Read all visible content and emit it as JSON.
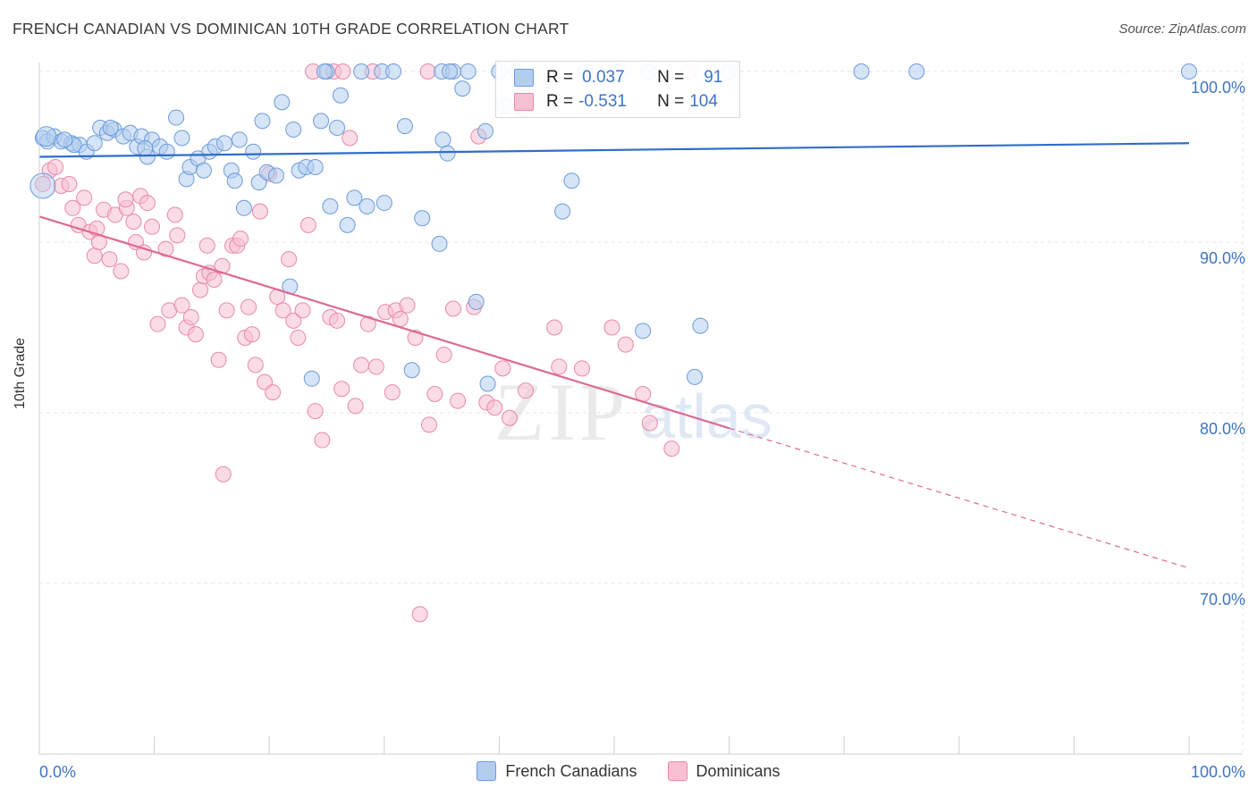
{
  "header": {
    "title": "FRENCH CANADIAN VS DOMINICAN 10TH GRADE CORRELATION CHART",
    "source": "Source: ZipAtlas.com"
  },
  "watermark": {
    "zip": "ZIP",
    "atlas": "atlas"
  },
  "legend": {
    "rows": [
      {
        "r_label": "R =",
        "r_value": "0.037",
        "n_label": "N =",
        "n_value": "91"
      },
      {
        "r_label": "R =",
        "r_value": "-0.531",
        "n_label": "N =",
        "n_value": "104"
      }
    ]
  },
  "bottom_legend": {
    "items": [
      "French Canadians",
      "Dominicans"
    ]
  },
  "chart_data": {
    "type": "scatter",
    "title": "FRENCH CANADIAN VS DOMINICAN 10TH GRADE CORRELATION CHART",
    "xlabel": "",
    "ylabel": "10th Grade",
    "xlim": [
      0,
      100
    ],
    "ylim": [
      60,
      100
    ],
    "x_tick_labels": [
      "0.0%",
      "100.0%"
    ],
    "y_ticks": [
      {
        "value": 100,
        "label": "100.0%"
      },
      {
        "value": 90,
        "label": "90.0%"
      },
      {
        "value": 80,
        "label": "80.0%"
      },
      {
        "value": 70,
        "label": "70.0%"
      }
    ],
    "grid": true,
    "legend_position": "top-center",
    "colors": {
      "blue_fill": "#b3cdef",
      "blue_stroke": "#6d9bdc",
      "blue_line": "#2f6ec9",
      "pink_fill": "#f7c0d2",
      "pink_stroke": "#e889a8",
      "pink_line": "#de6a93",
      "accent_text": "#3f74c4"
    },
    "series": [
      {
        "name": "French Canadians",
        "r": 0.037,
        "n": 91,
        "trend": {
          "x": [
            0,
            100
          ],
          "y": [
            95.0,
            95.8
          ]
        },
        "points": [
          [
            0.3,
            96.1
          ],
          [
            0.7,
            95.9
          ],
          [
            1.3,
            96.2
          ],
          [
            1.9,
            95.9
          ],
          [
            2.8,
            95.8
          ],
          [
            3.5,
            95.7
          ],
          [
            4.1,
            95.3
          ],
          [
            4.8,
            95.8
          ],
          [
            5.3,
            96.7
          ],
          [
            5.9,
            96.4
          ],
          [
            6.5,
            96.6
          ],
          [
            7.3,
            96.2
          ],
          [
            7.9,
            96.4
          ],
          [
            8.5,
            95.6
          ],
          [
            8.9,
            96.2
          ],
          [
            9.4,
            95.0
          ],
          [
            9.8,
            96.0
          ],
          [
            10.5,
            95.6
          ],
          [
            11.1,
            95.3
          ],
          [
            11.9,
            97.3
          ],
          [
            12.4,
            96.1
          ],
          [
            12.8,
            93.7
          ],
          [
            13.1,
            94.4
          ],
          [
            13.8,
            94.9
          ],
          [
            14.3,
            94.2
          ],
          [
            14.8,
            95.3
          ],
          [
            15.3,
            95.6
          ],
          [
            16.1,
            95.8
          ],
          [
            16.7,
            94.2
          ],
          [
            17.0,
            93.6
          ],
          [
            17.4,
            96.0
          ],
          [
            17.8,
            92.0
          ],
          [
            18.6,
            95.3
          ],
          [
            19.1,
            93.5
          ],
          [
            19.4,
            97.1
          ],
          [
            19.8,
            94.1
          ],
          [
            20.6,
            93.9
          ],
          [
            21.1,
            98.2
          ],
          [
            21.8,
            87.4
          ],
          [
            22.1,
            96.6
          ],
          [
            22.6,
            94.2
          ],
          [
            23.2,
            94.4
          ],
          [
            23.7,
            82.0
          ],
          [
            24.0,
            94.4
          ],
          [
            24.5,
            97.1
          ],
          [
            25.3,
            92.1
          ],
          [
            25.9,
            96.7
          ],
          [
            26.2,
            98.6
          ],
          [
            26.8,
            91.0
          ],
          [
            27.4,
            92.6
          ],
          [
            28.5,
            92.1
          ],
          [
            30.0,
            92.3
          ],
          [
            31.8,
            96.8
          ],
          [
            32.4,
            82.5
          ],
          [
            33.3,
            91.4
          ],
          [
            34.8,
            89.9
          ],
          [
            35.1,
            96.0
          ],
          [
            35.5,
            95.2
          ],
          [
            36.8,
            99.0
          ],
          [
            38.0,
            86.5
          ],
          [
            38.8,
            96.5
          ],
          [
            39.0,
            81.7
          ],
          [
            40.5,
            98.0
          ],
          [
            45.5,
            91.8
          ],
          [
            46.3,
            93.6
          ],
          [
            52.5,
            84.8
          ],
          [
            57.0,
            82.1
          ],
          [
            57.5,
            85.1
          ],
          [
            25.0,
            100.0
          ],
          [
            28.0,
            100.0
          ],
          [
            29.8,
            100.0
          ],
          [
            30.8,
            100.0
          ],
          [
            35.0,
            100.0
          ],
          [
            36.0,
            100.0
          ],
          [
            40.0,
            100.0
          ],
          [
            41.5,
            100.0
          ],
          [
            47.5,
            100.0
          ],
          [
            50.5,
            100.0
          ],
          [
            53.0,
            100.0
          ],
          [
            60.0,
            100.0
          ],
          [
            71.5,
            100.0
          ],
          [
            76.3,
            100.0
          ],
          [
            100.0,
            100.0
          ],
          [
            37.3,
            100.0
          ],
          [
            42.0,
            97.8
          ],
          [
            24.8,
            100.0
          ],
          [
            35.7,
            100.0
          ],
          [
            9.2,
            95.5
          ],
          [
            6.2,
            96.7
          ],
          [
            3.0,
            95.7
          ],
          [
            2.2,
            96.0
          ]
        ]
      },
      {
        "name": "Dominicans",
        "r": -0.531,
        "n": 104,
        "trend": {
          "x": [
            0,
            60
          ],
          "y": [
            91.5,
            79.1
          ]
        },
        "trend_dashed": {
          "x": [
            60,
            100
          ],
          "y": [
            79.1,
            70.9
          ]
        },
        "points": [
          [
            0.3,
            93.4
          ],
          [
            0.9,
            94.2
          ],
          [
            1.4,
            94.4
          ],
          [
            1.9,
            93.3
          ],
          [
            2.6,
            93.4
          ],
          [
            2.9,
            92.0
          ],
          [
            3.4,
            91.0
          ],
          [
            3.9,
            92.6
          ],
          [
            4.4,
            90.6
          ],
          [
            4.8,
            89.2
          ],
          [
            5.2,
            90.0
          ],
          [
            5.6,
            91.9
          ],
          [
            6.1,
            89.0
          ],
          [
            6.6,
            91.6
          ],
          [
            7.1,
            88.3
          ],
          [
            7.6,
            92.0
          ],
          [
            8.2,
            91.2
          ],
          [
            8.4,
            90.0
          ],
          [
            8.8,
            92.7
          ],
          [
            9.1,
            89.4
          ],
          [
            9.4,
            92.3
          ],
          [
            9.8,
            90.9
          ],
          [
            10.3,
            85.2
          ],
          [
            11.0,
            89.6
          ],
          [
            11.3,
            86.0
          ],
          [
            11.8,
            91.6
          ],
          [
            12.0,
            90.4
          ],
          [
            12.4,
            86.3
          ],
          [
            12.8,
            85.0
          ],
          [
            13.2,
            85.6
          ],
          [
            13.6,
            84.6
          ],
          [
            14.0,
            87.2
          ],
          [
            14.3,
            88.0
          ],
          [
            14.6,
            89.8
          ],
          [
            14.8,
            88.2
          ],
          [
            15.2,
            87.8
          ],
          [
            15.6,
            83.1
          ],
          [
            15.9,
            88.6
          ],
          [
            16.3,
            86.0
          ],
          [
            16.8,
            89.8
          ],
          [
            17.2,
            89.8
          ],
          [
            17.5,
            90.2
          ],
          [
            17.9,
            84.4
          ],
          [
            18.2,
            86.2
          ],
          [
            18.5,
            84.6
          ],
          [
            18.8,
            82.8
          ],
          [
            19.2,
            91.8
          ],
          [
            19.6,
            81.8
          ],
          [
            20.0,
            94.0
          ],
          [
            20.3,
            81.2
          ],
          [
            20.7,
            86.8
          ],
          [
            21.2,
            86.0
          ],
          [
            21.7,
            89.0
          ],
          [
            22.1,
            85.4
          ],
          [
            22.5,
            84.4
          ],
          [
            22.9,
            86.0
          ],
          [
            23.4,
            91.0
          ],
          [
            24.0,
            80.1
          ],
          [
            24.6,
            78.4
          ],
          [
            25.3,
            85.6
          ],
          [
            25.9,
            85.4
          ],
          [
            26.3,
            81.4
          ],
          [
            27.0,
            96.1
          ],
          [
            27.5,
            80.4
          ],
          [
            28.0,
            82.8
          ],
          [
            28.6,
            85.2
          ],
          [
            29.3,
            82.7
          ],
          [
            30.1,
            85.9
          ],
          [
            30.7,
            81.2
          ],
          [
            31.0,
            86.0
          ],
          [
            31.4,
            85.5
          ],
          [
            32.0,
            86.3
          ],
          [
            32.7,
            84.4
          ],
          [
            33.1,
            68.2
          ],
          [
            33.9,
            79.3
          ],
          [
            34.4,
            81.1
          ],
          [
            35.2,
            83.4
          ],
          [
            36.4,
            80.7
          ],
          [
            37.8,
            86.2
          ],
          [
            38.9,
            80.6
          ],
          [
            39.6,
            80.3
          ],
          [
            40.3,
            82.6
          ],
          [
            40.9,
            79.7
          ],
          [
            42.3,
            81.3
          ],
          [
            44.8,
            85.0
          ],
          [
            45.2,
            82.7
          ],
          [
            47.2,
            82.6
          ],
          [
            49.8,
            85.0
          ],
          [
            51.0,
            84.0
          ],
          [
            52.5,
            81.1
          ],
          [
            53.1,
            79.4
          ],
          [
            55.0,
            77.9
          ],
          [
            16.0,
            76.4
          ],
          [
            36.0,
            86.1
          ],
          [
            38.2,
            96.2
          ],
          [
            42.0,
            98.0
          ],
          [
            56.5,
            100.0
          ],
          [
            23.8,
            100.0
          ],
          [
            25.6,
            100.0
          ],
          [
            26.4,
            100.0
          ],
          [
            29.0,
            100.0
          ],
          [
            33.8,
            100.0
          ],
          [
            7.5,
            92.5
          ],
          [
            5.0,
            90.8
          ]
        ]
      }
    ]
  }
}
